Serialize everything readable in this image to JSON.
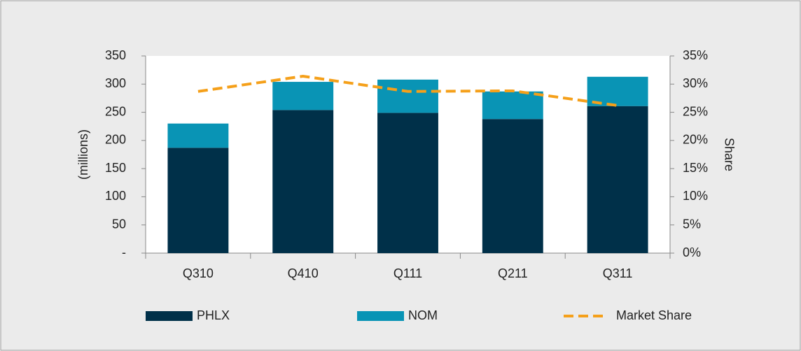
{
  "chart_data": {
    "type": "bar",
    "categories": [
      "Q310",
      "Q410",
      "Q111",
      "Q211",
      "Q311"
    ],
    "series": [
      {
        "name": "PHLX",
        "color": "#003049",
        "values": [
          187,
          254,
          249,
          238,
          261
        ]
      },
      {
        "name": "NOM",
        "color": "#0994b5",
        "values": [
          43,
          50,
          59,
          49,
          52
        ]
      },
      {
        "name": "Market Share",
        "color": "#f5a01a",
        "type": "line",
        "axis": "y2",
        "values": [
          28.7,
          31.4,
          28.7,
          28.8,
          26.2
        ]
      }
    ],
    "stacked": true,
    "ylabel": "(millions)",
    "y2label": "Share",
    "ylim": [
      0,
      350
    ],
    "yticks": [
      {
        "value": 0,
        "label": "-"
      },
      50,
      100,
      150,
      200,
      250,
      300,
      350
    ],
    "y2lim": [
      0,
      35
    ],
    "y2ticks": [
      {
        "value": 0,
        "label": "0%"
      },
      {
        "value": 5,
        "label": "5%"
      },
      {
        "value": 10,
        "label": "10%"
      },
      {
        "value": 15,
        "label": "15%"
      },
      {
        "value": 20,
        "label": "20%"
      },
      {
        "value": 25,
        "label": "25%"
      },
      {
        "value": 30,
        "label": "30%"
      },
      {
        "value": 35,
        "label": "35%"
      }
    ],
    "grid": false,
    "legend": "bottom"
  }
}
